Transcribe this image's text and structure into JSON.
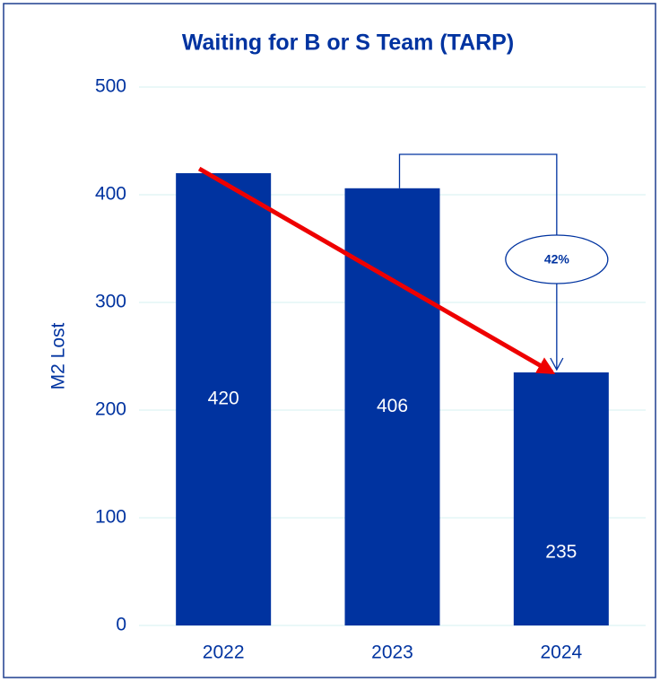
{
  "chart_data": {
    "type": "bar",
    "title": "Waiting for B or S Team (TARP)",
    "y_label": "M2 Lost",
    "categories": [
      "2022",
      "2023",
      "2024"
    ],
    "values": [
      420,
      406,
      235
    ],
    "color": "#0033a0",
    "ylim": [
      0,
      500
    ],
    "yticks": [
      0,
      100,
      200,
      300,
      400,
      500
    ],
    "grid": true,
    "annotation": "42%"
  }
}
